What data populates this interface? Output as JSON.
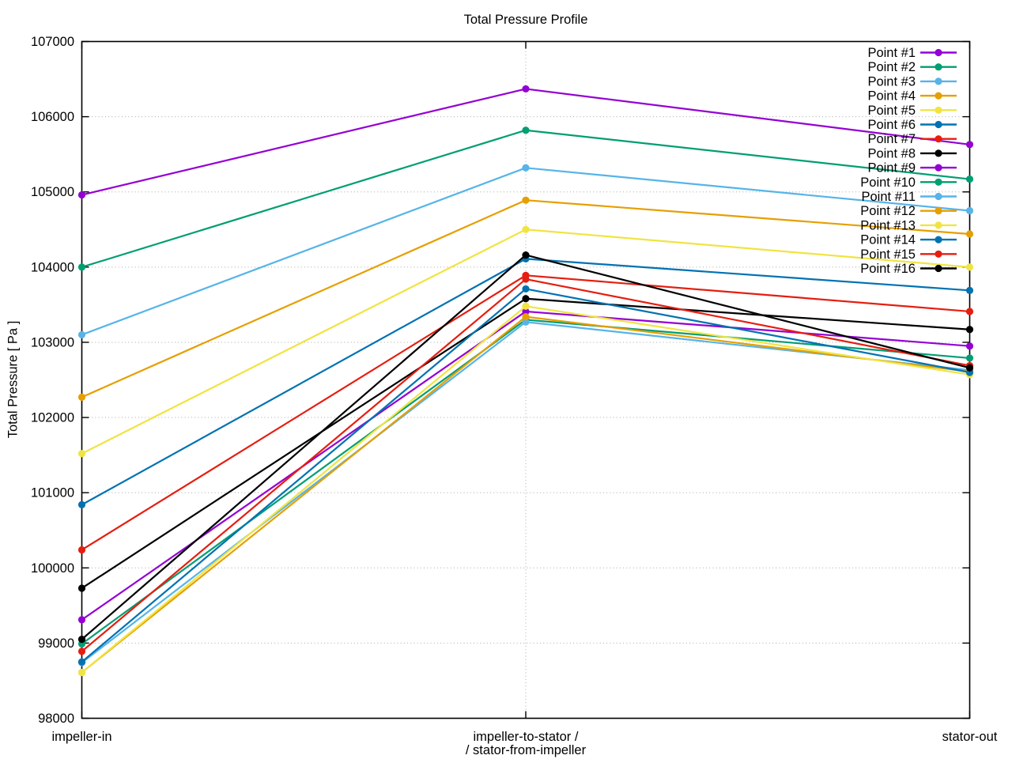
{
  "title": "Total Pressure Profile",
  "y_axis": {
    "label": "Total Pressure [ Pa ]",
    "min": 98000,
    "max": 107000,
    "step": 1000
  },
  "x_axis": {
    "tick_labels": [
      [
        "impeller-in"
      ],
      [
        "impeller-to-stator /",
        "/ stator-from-impeller"
      ],
      [
        "stator-out"
      ]
    ]
  },
  "chart_data": {
    "type": "line",
    "title": "Total Pressure Profile",
    "ylabel": "Total Pressure [ Pa ]",
    "ylim": [
      98000,
      107000
    ],
    "ytick_step": 1000,
    "grid": true,
    "marker": "filled-circle",
    "legend_position": "top-right inside",
    "categories": [
      "impeller-in",
      "impeller-to-stator / / stator-from-impeller",
      "stator-out"
    ],
    "series": [
      {
        "name": "Point #1",
        "color": "#9400d3",
        "values": [
          104960,
          106370,
          105630
        ]
      },
      {
        "name": "Point #2",
        "color": "#009e73",
        "values": [
          104000,
          105820,
          105170
        ]
      },
      {
        "name": "Point #3",
        "color": "#56b4e9",
        "values": [
          103100,
          105320,
          104750
        ]
      },
      {
        "name": "Point #4",
        "color": "#e69f00",
        "values": [
          102270,
          104890,
          104440
        ]
      },
      {
        "name": "Point #5",
        "color": "#f0e442",
        "values": [
          101520,
          104500,
          104000
        ]
      },
      {
        "name": "Point #6",
        "color": "#0072b2",
        "values": [
          100840,
          104110,
          103690
        ]
      },
      {
        "name": "Point #7",
        "color": "#e51e10",
        "values": [
          100240,
          103890,
          103410
        ]
      },
      {
        "name": "Point #8",
        "color": "#000000",
        "values": [
          99730,
          103580,
          103170
        ]
      },
      {
        "name": "Point #9",
        "color": "#9400d3",
        "values": [
          99310,
          103410,
          102950
        ]
      },
      {
        "name": "Point #10",
        "color": "#009e73",
        "values": [
          98990,
          103300,
          102790
        ]
      },
      {
        "name": "Point #11",
        "color": "#56b4e9",
        "values": [
          98740,
          103270,
          102630
        ]
      },
      {
        "name": "Point #12",
        "color": "#e69f00",
        "values": [
          98610,
          103340,
          102610
        ]
      },
      {
        "name": "Point #13",
        "color": "#f0e442",
        "values": [
          98610,
          103480,
          102570
        ]
      },
      {
        "name": "Point #14",
        "color": "#0072b2",
        "values": [
          98750,
          103710,
          102600
        ]
      },
      {
        "name": "Point #15",
        "color": "#e51e10",
        "values": [
          98890,
          103840,
          102690
        ]
      },
      {
        "name": "Point #16",
        "color": "#000000",
        "values": [
          99050,
          104160,
          102660
        ]
      }
    ]
  }
}
